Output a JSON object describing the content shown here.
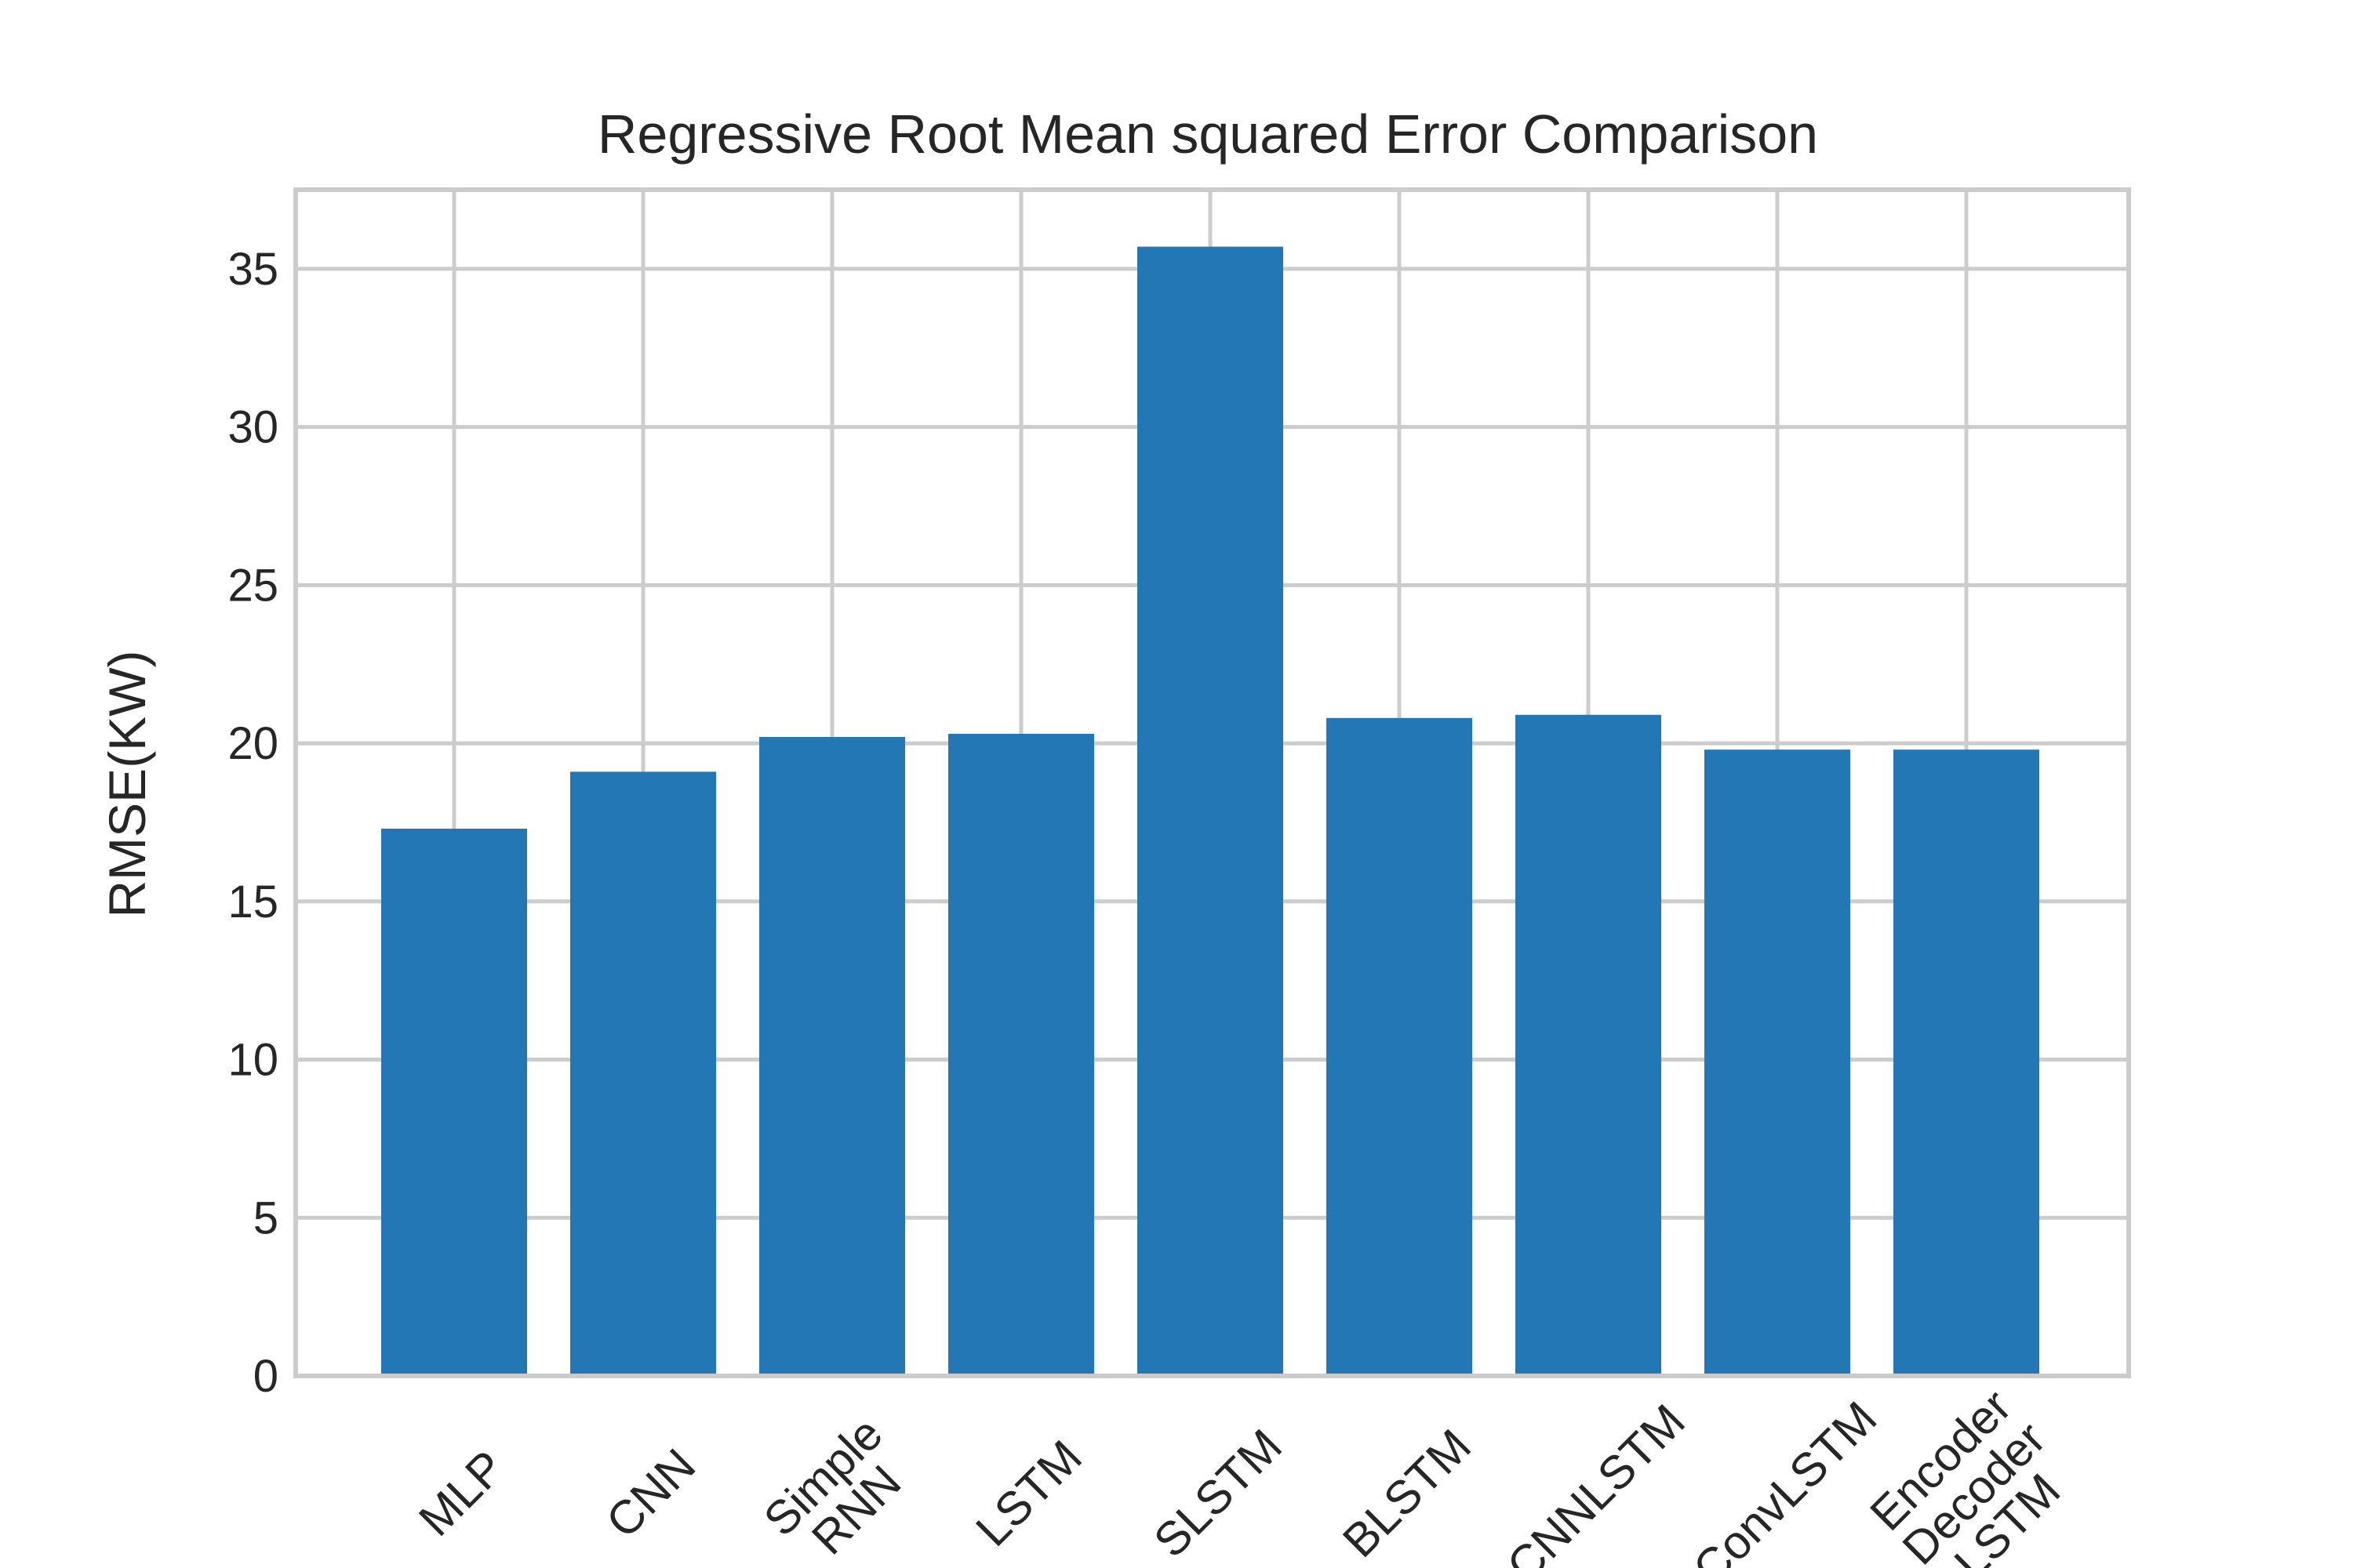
{
  "chart_data": {
    "type": "bar",
    "title": "Regressive Root Mean squared Error Comparison",
    "xlabel": "",
    "ylabel": "RMSE(KW)",
    "categories": [
      "MLP",
      "CNN",
      "Simple RNN",
      "LSTM",
      "SLSTM",
      "BLSTM",
      "CNNLSTM",
      "ConvLSTM",
      "Encoder Decoder LSTM"
    ],
    "category_lines": [
      [
        "MLP"
      ],
      [
        "CNN"
      ],
      [
        "Simple",
        "RNN"
      ],
      [
        "LSTM"
      ],
      [
        "SLSTM"
      ],
      [
        "BLSTM"
      ],
      [
        "CNNLSTM"
      ],
      [
        "ConvLSTM"
      ],
      [
        "Encoder",
        "Decoder",
        "LSTM"
      ]
    ],
    "values": [
      17.3,
      19.1,
      20.2,
      20.3,
      35.7,
      20.8,
      20.9,
      19.8,
      19.8
    ],
    "ylim": [
      0,
      37.5
    ],
    "yticks": [
      0,
      5,
      10,
      15,
      20,
      25,
      30,
      35
    ],
    "grid": true,
    "bar_color": "#2277b4",
    "grid_color": "#cccccc",
    "text_color": "#262626"
  }
}
